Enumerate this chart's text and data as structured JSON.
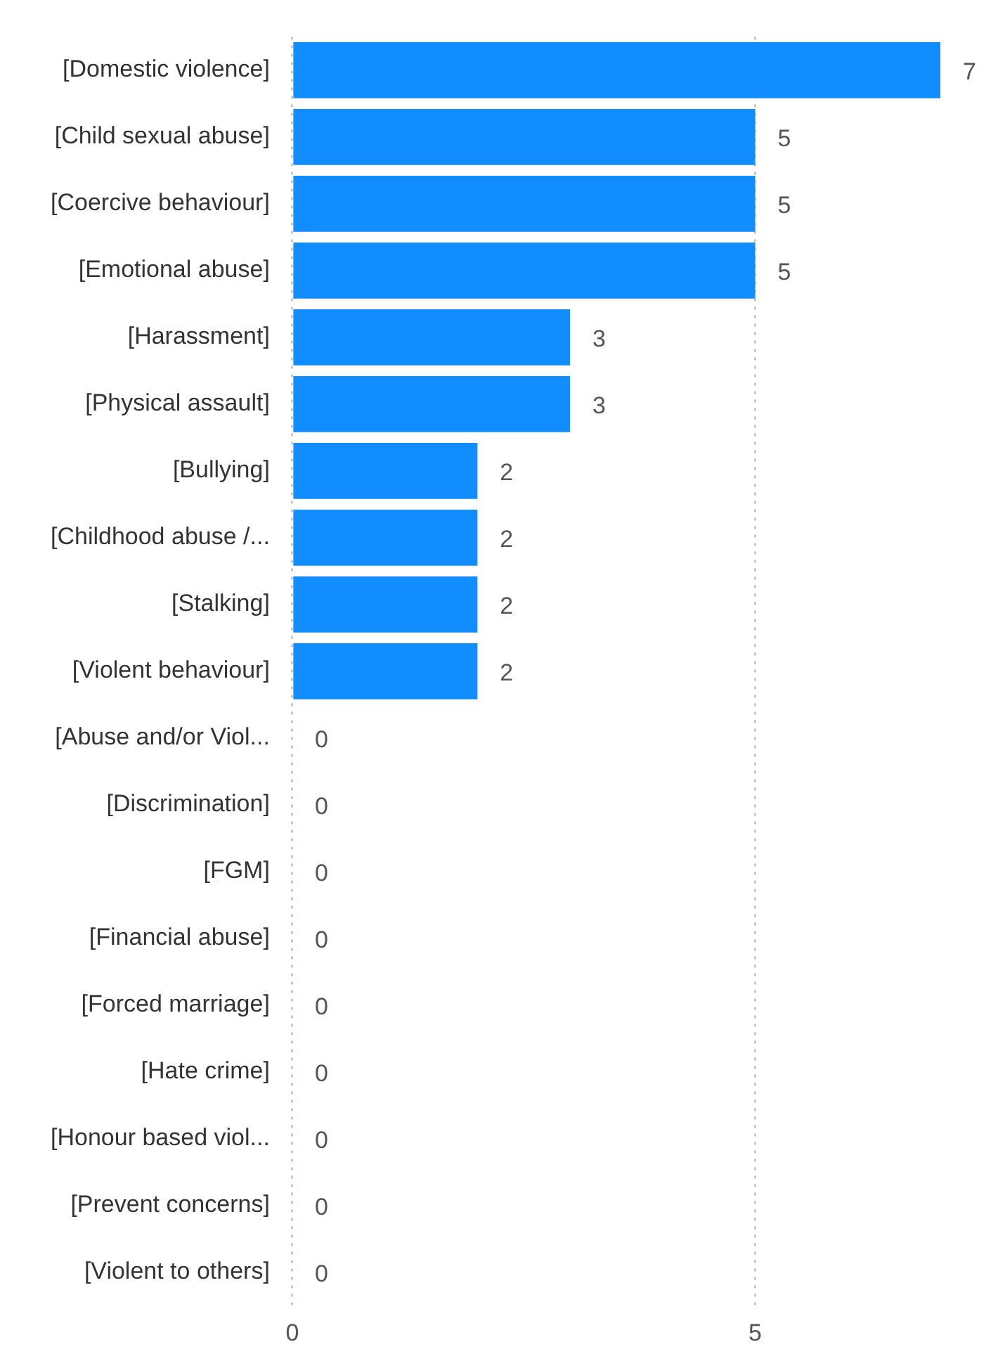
{
  "chart_data": {
    "type": "bar",
    "orientation": "horizontal",
    "categories": [
      "[Domestic violence]",
      "[Child sexual abuse]",
      "[Coercive behaviour]",
      "[Emotional abuse]",
      "[Harassment]",
      "[Physical assault]",
      "[Bullying]",
      "[Childhood abuse /...",
      "[Stalking]",
      "[Violent behaviour]",
      "[Abuse and/or Viol...",
      "[Discrimination]",
      "[FGM]",
      "[Financial abuse]",
      "[Forced marriage]",
      "[Hate crime]",
      "[Honour based viol...",
      "[Prevent concerns]",
      "[Violent to others]"
    ],
    "values": [
      7,
      5,
      5,
      5,
      3,
      3,
      2,
      2,
      2,
      2,
      0,
      0,
      0,
      0,
      0,
      0,
      0,
      0,
      0
    ],
    "color": "#118dff",
    "xlim": [
      0,
      7
    ],
    "xticks": [
      0,
      5
    ],
    "grid": "x",
    "data_labels": true,
    "legend": false
  }
}
